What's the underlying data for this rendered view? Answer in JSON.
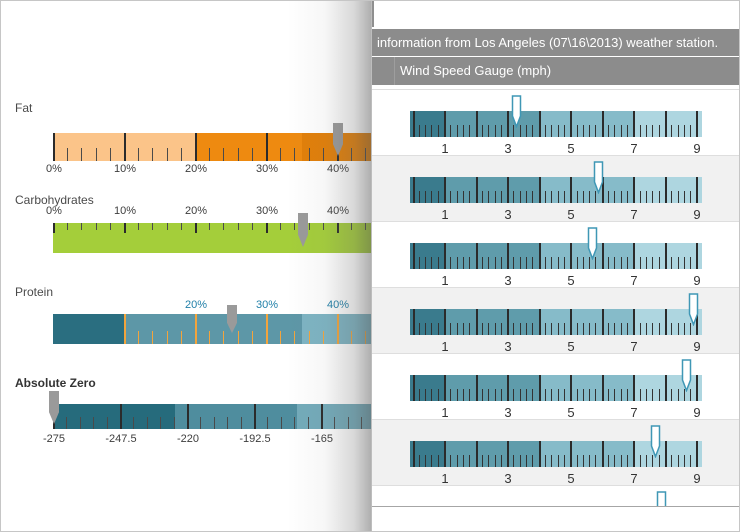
{
  "left_panel": {
    "gauges": [
      {
        "title": "Fat",
        "title_bold": false,
        "scale": {
          "min": 0,
          "max": 45,
          "tick_labels": [
            {
              "value": 0,
              "label": "0%"
            },
            {
              "value": 10,
              "label": "10%"
            },
            {
              "value": 20,
              "label": "20%"
            },
            {
              "value": 30,
              "label": "30%"
            },
            {
              "value": 40,
              "label": "40%"
            }
          ],
          "minor_step": 2,
          "minor_from": 2
        },
        "label_color": "#3d3d3d",
        "ticks": {
          "major_color": "#2b2b2b",
          "minor_color": "#4a4a4a"
        },
        "ranges": [
          {
            "from": 0,
            "to": 20,
            "color": "#fbc489"
          },
          {
            "from": 20,
            "to": 35,
            "color": "#ee8a10"
          },
          {
            "from": 35,
            "to": 45,
            "color": "#e27f08"
          }
        ],
        "needle": {
          "value": 40,
          "color": "#9a9a9a"
        }
      },
      {
        "title": "Carbohydrates",
        "title_bold": false,
        "scale": {
          "min": 0,
          "max": 45,
          "tick_labels": [
            {
              "value": 0,
              "label": "0%"
            },
            {
              "value": 10,
              "label": "10%"
            },
            {
              "value": 20,
              "label": "20%"
            },
            {
              "value": 30,
              "label": "30%"
            },
            {
              "value": 40,
              "label": "40%"
            }
          ],
          "minor_step": 2,
          "minor_from": 2
        },
        "label_color": "#3d3d3d",
        "ticks": {
          "major_color": "#2b2b2b",
          "minor_color": "#4a4a4a"
        },
        "ranges": [
          {
            "from": 0,
            "to": 45,
            "color": "#a4ce3a"
          }
        ],
        "needle": {
          "value": 35,
          "color": "#9a9a9a"
        }
      },
      {
        "title": "Protein",
        "title_bold": false,
        "scale": {
          "min": 0,
          "max": 45,
          "tick_labels": [
            {
              "value": 20,
              "label": "20%"
            },
            {
              "value": 30,
              "label": "30%"
            },
            {
              "value": 40,
              "label": "40%"
            }
          ],
          "major_tick_values": [
            10,
            20,
            30,
            40
          ],
          "minor_step": 2,
          "minor_from": 12
        },
        "label_color": "#1f7fa8",
        "ticks": {
          "major_color": "#f2a43c",
          "minor_color": "#f2a43c"
        },
        "ranges": [
          {
            "from": 0,
            "to": 10,
            "color": "#2a6e80"
          },
          {
            "from": 10,
            "to": 35,
            "color": "#5d97a7"
          },
          {
            "from": 35,
            "to": 45,
            "color": "#7db4c3"
          }
        ],
        "needle": {
          "value": 25,
          "color": "#9a9a9a"
        }
      },
      {
        "title": "Absolute Zero",
        "title_bold": true,
        "scale": {
          "min": -275,
          "max": -143,
          "tick_labels": [
            {
              "value": -275,
              "label": "-275"
            },
            {
              "value": -247.5,
              "label": "-247.5"
            },
            {
              "value": -220,
              "label": "-220"
            },
            {
              "value": -192.5,
              "label": "-192.5"
            },
            {
              "value": -165,
              "label": "-165"
            }
          ],
          "minor_step": 5.5,
          "minor_from": -269.5
        },
        "label_color": "#3d3d3d",
        "ticks": {
          "major_color": "#2b2b2b",
          "minor_color": "#4a4a4a"
        },
        "ranges": [
          {
            "from": -275,
            "to": -225,
            "color": "#266b7c"
          },
          {
            "from": -225,
            "to": -175,
            "color": "#4f8d9e"
          },
          {
            "from": -175,
            "to": -143,
            "color": "#73abba"
          }
        ],
        "needle": {
          "value": -275,
          "color": "#9a9a9a"
        }
      }
    ]
  },
  "right_panel": {
    "header_info": "information from Los Angeles (07\\16\\2013) weather station.",
    "header_title": "Wind Speed Gauge (mph)",
    "header_bg": "#8c8c8c",
    "scale": {
      "min": 0,
      "max": 9,
      "major_step": 1,
      "minor_step": 0.2,
      "tick_labels": [
        "1",
        "3",
        "5",
        "7",
        "9"
      ],
      "tick_label_values": [
        1,
        3,
        5,
        7,
        9
      ]
    },
    "bands": [
      {
        "from": 0,
        "to": 1,
        "color": "#3a7b8d"
      },
      {
        "from": 1,
        "to": 4,
        "color": "#5f9cab"
      },
      {
        "from": 4,
        "to": 7,
        "color": "#86bbc9"
      },
      {
        "from": 7,
        "to": 9,
        "color": "#aed6e0"
      }
    ],
    "needle_style": {
      "fill": "#ffffff",
      "stroke": "#3f97b5"
    },
    "wind_speed_values": [
      3.3,
      5.9,
      5.7,
      8.9,
      8.7,
      7.7,
      7.9
    ],
    "row_alt_bg": "#f1f1f1",
    "tick_color": "#2b2b2b"
  }
}
